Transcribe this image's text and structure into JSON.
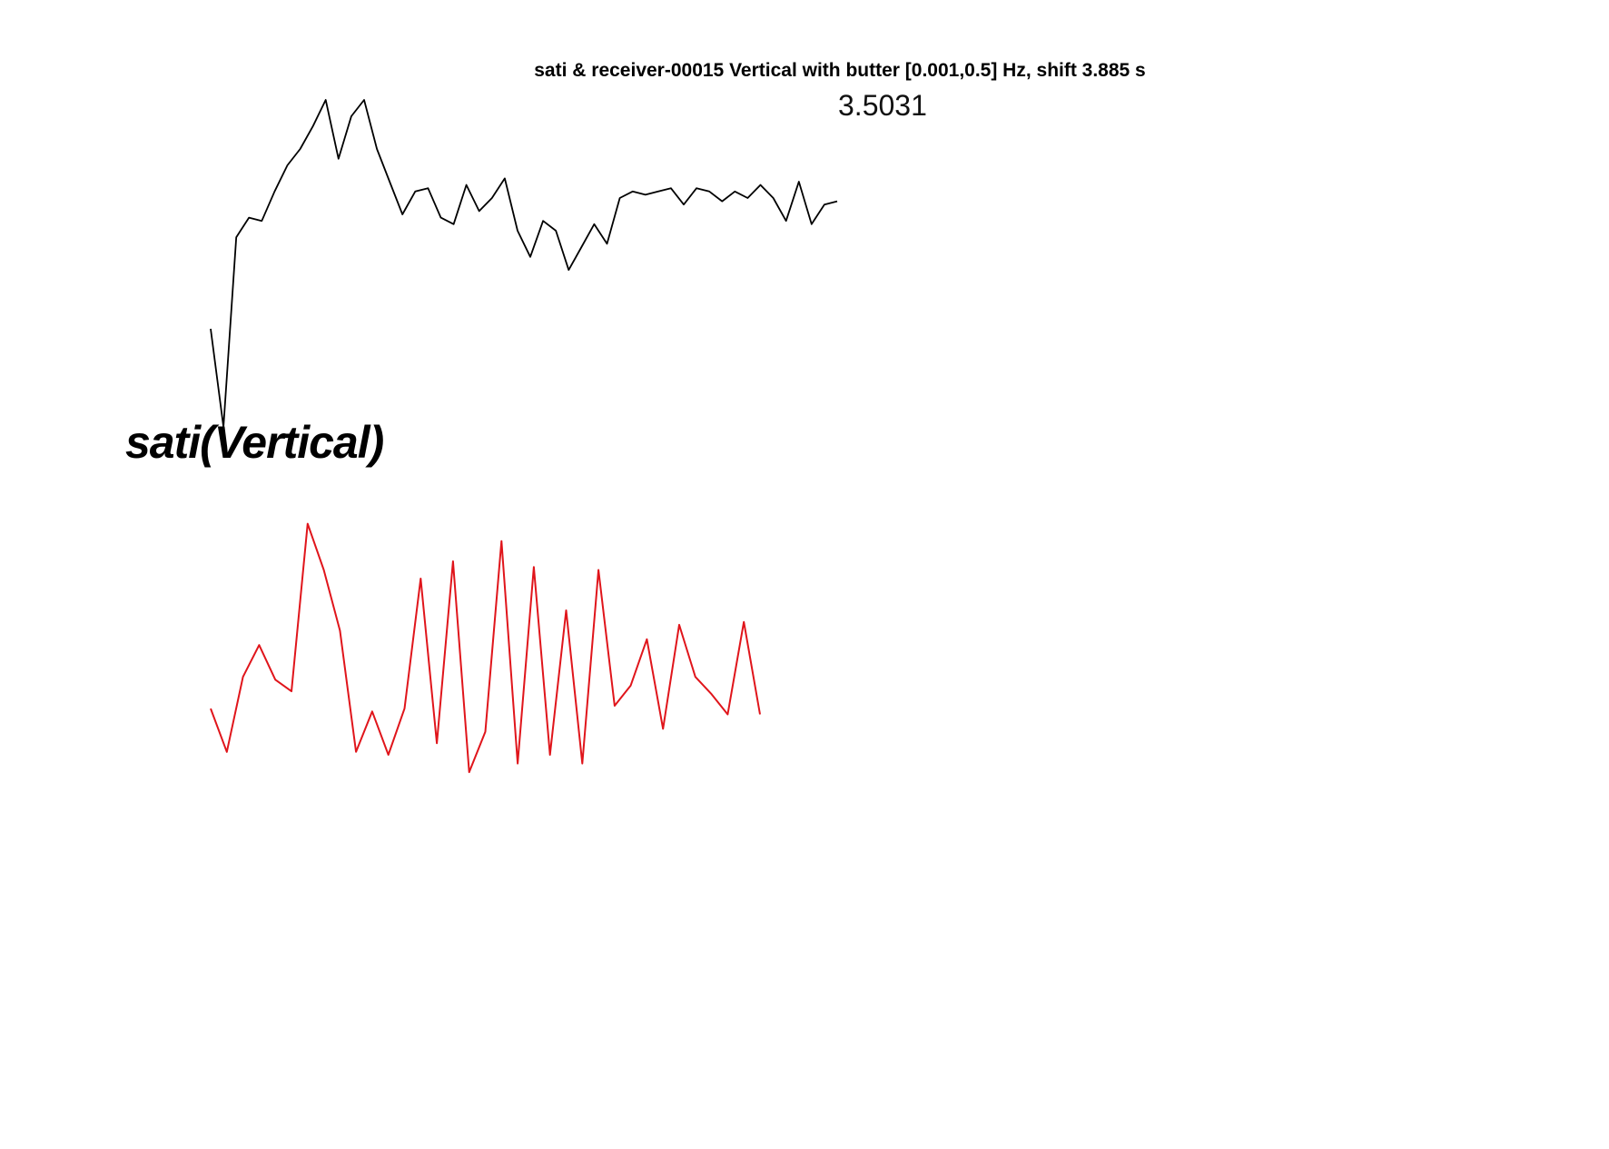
{
  "chart_data": {
    "type": "line",
    "title": "sati & receiver-00015 Vertical with butter [0.001,0.5] Hz, shift 3.885 s",
    "value_label": "3.5031",
    "station_label": "sati(Vertical)",
    "colors": {
      "black_trace": "#000000",
      "red_trace": "#e0151b"
    },
    "grid": false,
    "axes_visible": false,
    "series": [
      {
        "color": "#000000",
        "values": [
          0.3,
          0.0,
          0.58,
          0.64,
          0.63,
          0.72,
          0.8,
          0.85,
          0.92,
          1.0,
          0.82,
          0.95,
          1.0,
          0.85,
          0.75,
          0.65,
          0.72,
          0.73,
          0.64,
          0.62,
          0.74,
          0.66,
          0.7,
          0.76,
          0.6,
          0.52,
          0.63,
          0.6,
          0.48,
          0.55,
          0.62,
          0.56,
          0.7,
          0.72,
          0.71,
          0.72,
          0.73,
          0.68,
          0.73,
          0.72,
          0.69,
          0.72,
          0.7,
          0.74,
          0.7,
          0.63,
          0.75,
          0.62,
          0.68,
          0.69
        ]
      },
      {
        "color": "#e0151b",
        "values": [
          0.27,
          0.12,
          0.38,
          0.49,
          0.37,
          0.33,
          0.91,
          0.75,
          0.54,
          0.12,
          0.26,
          0.11,
          0.27,
          0.72,
          0.15,
          0.78,
          0.05,
          0.19,
          0.85,
          0.08,
          0.76,
          0.11,
          0.61,
          0.08,
          0.75,
          0.28,
          0.35,
          0.51,
          0.2,
          0.56,
          0.38,
          0.32,
          0.25,
          0.57,
          0.25
        ]
      }
    ]
  }
}
